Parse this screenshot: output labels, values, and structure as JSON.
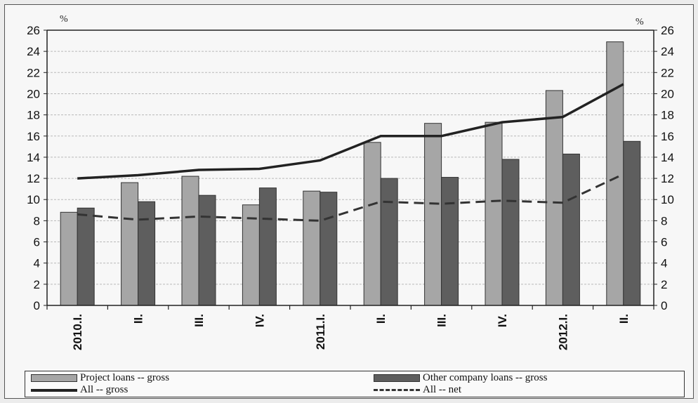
{
  "chart_data": {
    "type": "bar",
    "categories": [
      "2010.I.",
      "II.",
      "III.",
      "IV.",
      "2011.I.",
      "II.",
      "III.",
      "IV.",
      "2012.I.",
      "II."
    ],
    "series": [
      {
        "name": "Project loans -- gross",
        "kind": "bar",
        "color": "#a6a6a6",
        "values": [
          8.8,
          11.6,
          12.2,
          9.5,
          10.8,
          15.4,
          17.2,
          17.3,
          20.3,
          24.9
        ]
      },
      {
        "name": "Other company loans -- gross",
        "kind": "bar",
        "color": "#5e5e5e",
        "values": [
          9.2,
          9.8,
          10.4,
          11.1,
          10.7,
          12.0,
          12.1,
          13.8,
          14.3,
          15.5
        ]
      },
      {
        "name": "All -- gross",
        "kind": "line",
        "color": "#222222",
        "values": [
          12.0,
          12.3,
          12.8,
          12.9,
          13.7,
          16.0,
          16.0,
          17.3,
          17.8,
          20.9
        ]
      },
      {
        "name": "All -- net",
        "kind": "dashed-line",
        "color": "#333333",
        "values": [
          8.6,
          8.1,
          8.4,
          8.2,
          8.0,
          9.8,
          9.6,
          9.9,
          9.7,
          12.4
        ]
      }
    ],
    "y_left_unit": "%",
    "y_right_unit": "%",
    "ylim": [
      0,
      26
    ],
    "yticks": [
      0,
      2,
      4,
      6,
      8,
      10,
      12,
      14,
      16,
      18,
      20,
      22,
      24,
      26
    ],
    "grid": true,
    "legend_position": "bottom"
  }
}
